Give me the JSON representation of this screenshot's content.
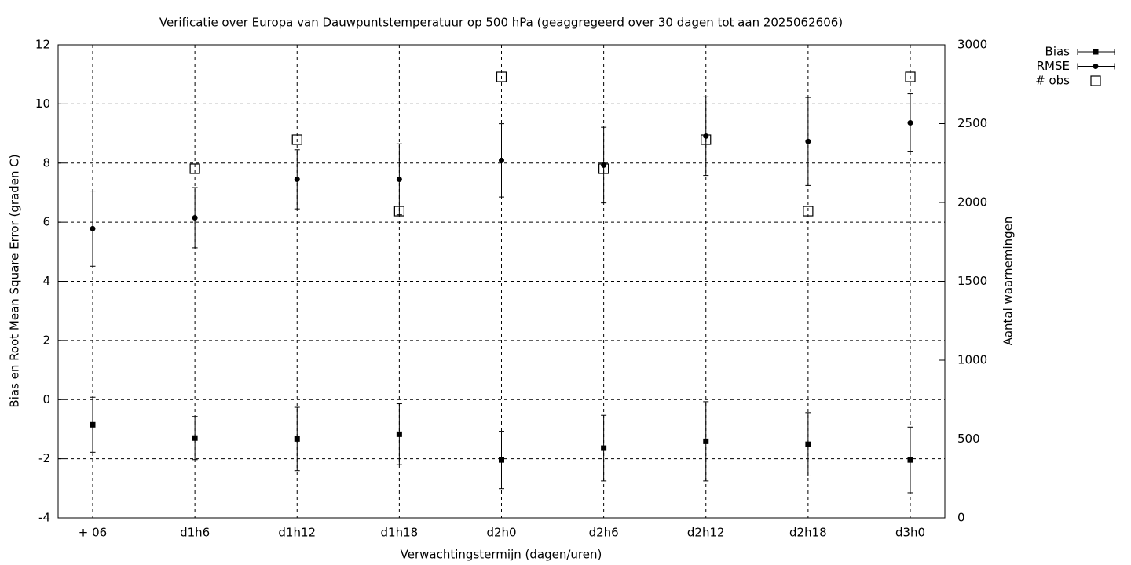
{
  "chart_data": {
    "type": "errorbar",
    "title": "Verificatie over Europa van Dauwpuntstemperatuur op 500 hPa (geaggregeerd over 30 dagen tot aan 2025062606)",
    "x_label": "Verwachtingstermijn (dagen/uren)",
    "y_label": "Bias en Root Mean Square Error (graden C)",
    "y2_label": "Aantal waarnemingen",
    "categories": [
      "+ 06",
      "d1h6",
      "d1h12",
      "d1h18",
      "d2h0",
      "d2h6",
      "d2h12",
      "d2h18",
      "d3h0"
    ],
    "ylim": [
      -4,
      12
    ],
    "yticks": [
      -4,
      -2,
      0,
      2,
      4,
      6,
      8,
      10,
      12
    ],
    "y2lim": [
      0,
      3000
    ],
    "y2ticks": [
      0,
      500,
      1000,
      1500,
      2000,
      2500,
      3000
    ],
    "grid": true,
    "legend": "top-right-outside",
    "series": [
      {
        "name": "Bias",
        "color": "#000000",
        "marker": "square",
        "values": [
          -0.85,
          -1.3,
          -1.33,
          -1.17,
          -2.04,
          -1.64,
          -1.41,
          -1.51,
          -2.04
        ],
        "errors": [
          0.93,
          0.73,
          1.07,
          1.03,
          0.97,
          1.11,
          1.34,
          1.07,
          1.11
        ]
      },
      {
        "name": "RMSE",
        "color": "#000000",
        "marker": "circle",
        "values": [
          5.78,
          6.15,
          7.45,
          7.45,
          8.09,
          7.93,
          8.91,
          8.73,
          9.36
        ],
        "errors": [
          1.27,
          1.02,
          1.0,
          1.2,
          1.24,
          1.28,
          1.33,
          1.49,
          0.98
        ]
      },
      {
        "name": "# obs",
        "color": "#000000",
        "marker": "open-square",
        "axis": "y2",
        "values": [
          null,
          2214,
          2398,
          1945,
          2796,
          2214,
          2398,
          1945,
          2796
        ]
      }
    ]
  }
}
